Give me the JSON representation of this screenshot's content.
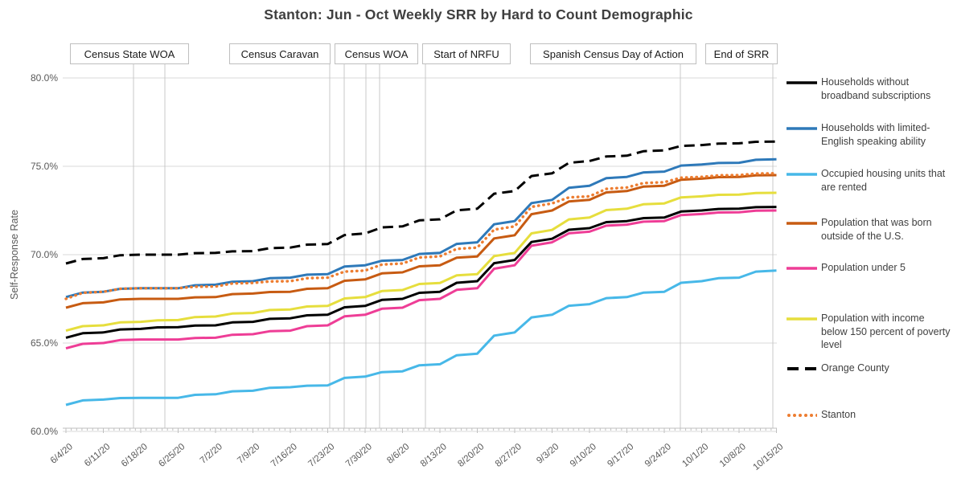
{
  "title": "Stanton: Jun - Oct Weekly SRR by Hard to Count Demographic",
  "y_axis": {
    "label": "Self-Response Rate",
    "tick_labels": [
      "80.0%",
      "75.0%",
      "70.0%",
      "65.0%",
      "60.0%"
    ]
  },
  "annotations": [
    {
      "label": "Census State WOA"
    },
    {
      "label": "Census Caravan"
    },
    {
      "label": "Census WOA"
    },
    {
      "label": "Start of NRFU"
    },
    {
      "label": "Spanish Census Day of Action"
    },
    {
      "label": "End of SRR"
    }
  ],
  "chart_data": {
    "type": "line",
    "title": "Stanton: Jun - Oct Weekly SRR by Hard to Count Demographic",
    "xlabel": "",
    "ylabel": "Self-Response Rate",
    "ylim": [
      60,
      80
    ],
    "y_tick_step": 5,
    "grid": "horizontal",
    "legend_position": "right",
    "categories": [
      "6/4/20",
      "6/11/20",
      "6/18/20",
      "6/25/20",
      "7/2/20",
      "7/9/20",
      "7/16/20",
      "7/23/20",
      "7/30/20",
      "8/6/20",
      "8/13/20",
      "8/20/20",
      "8/27/20",
      "9/3/20",
      "9/10/20",
      "9/17/20",
      "9/24/20",
      "10/1/20",
      "10/8/20",
      "10/15/20"
    ],
    "series": [
      {
        "name": "Households without broadband subscriptions",
        "color": "#000000",
        "style": "solid",
        "values": [
          65.3,
          65.6,
          65.8,
          65.9,
          66.0,
          66.2,
          66.4,
          66.6,
          67.1,
          67.5,
          67.9,
          68.5,
          69.7,
          70.9,
          71.5,
          71.9,
          72.1,
          72.5,
          72.6,
          72.7
        ]
      },
      {
        "name": "Households with limited-English speaking ability",
        "color": "#2e79b9",
        "style": "solid",
        "values": [
          67.6,
          67.9,
          68.1,
          68.1,
          68.3,
          68.5,
          68.7,
          68.9,
          69.4,
          69.7,
          70.1,
          70.7,
          71.9,
          73.1,
          73.9,
          74.4,
          74.7,
          75.1,
          75.2,
          75.4
        ]
      },
      {
        "name": "Occupied housing units that are rented",
        "color": "#47b8e8",
        "style": "solid",
        "values": [
          61.5,
          61.8,
          61.9,
          61.9,
          62.1,
          62.3,
          62.5,
          62.6,
          63.1,
          63.4,
          63.8,
          64.4,
          65.6,
          66.6,
          67.2,
          67.6,
          67.9,
          68.5,
          68.7,
          69.1
        ]
      },
      {
        "name": "Population that was born outside of the U.S.",
        "color": "#c75b12",
        "style": "solid",
        "values": [
          67.0,
          67.3,
          67.5,
          67.5,
          67.6,
          67.8,
          67.9,
          68.1,
          68.6,
          69.0,
          69.4,
          69.9,
          71.1,
          72.5,
          73.1,
          73.6,
          73.9,
          74.3,
          74.4,
          74.5
        ]
      },
      {
        "name": "Population under 5",
        "color": "#ee3d96",
        "style": "solid",
        "values": [
          64.7,
          65.0,
          65.2,
          65.2,
          65.3,
          65.5,
          65.7,
          66.0,
          66.6,
          67.0,
          67.5,
          68.1,
          69.4,
          70.7,
          71.3,
          71.7,
          71.9,
          72.3,
          72.4,
          72.5
        ]
      },
      {
        "name": "Population with income below 150 percent of poverty level",
        "color": "#e6de3d",
        "style": "solid",
        "values": [
          65.7,
          66.0,
          66.2,
          66.3,
          66.5,
          66.7,
          66.9,
          67.1,
          67.6,
          68.0,
          68.4,
          68.9,
          70.1,
          71.4,
          72.1,
          72.6,
          72.9,
          73.3,
          73.4,
          73.5
        ]
      },
      {
        "name": "Orange County",
        "color": "#000000",
        "style": "dashed",
        "values": [
          69.5,
          69.8,
          70.0,
          70.0,
          70.1,
          70.2,
          70.4,
          70.6,
          71.2,
          71.6,
          72.0,
          72.6,
          73.6,
          74.6,
          75.3,
          75.6,
          75.9,
          76.2,
          76.3,
          76.4
        ]
      },
      {
        "name": "Stanton",
        "color": "#ed7d31",
        "style": "dotted",
        "values": [
          67.5,
          67.9,
          68.1,
          68.1,
          68.2,
          68.4,
          68.5,
          68.7,
          69.1,
          69.5,
          69.9,
          70.4,
          71.6,
          72.9,
          73.3,
          73.8,
          74.1,
          74.4,
          74.5,
          74.6
        ]
      }
    ],
    "event_markers": [
      "Census State WOA",
      "Census Caravan",
      "Census WOA",
      "Start of NRFU",
      "Spanish Census Day of Action",
      "End of SRR"
    ]
  }
}
